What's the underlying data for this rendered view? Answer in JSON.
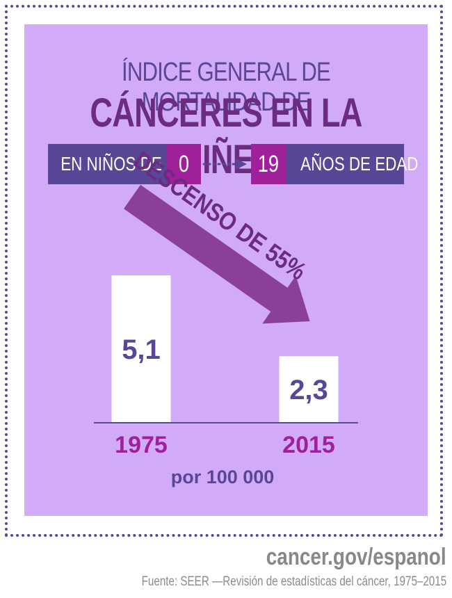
{
  "title_line1": "ÍNDICE GENERAL DE MORTALIDAD DE",
  "title_line2": "CÁNCERES EN LA NIÑEZ",
  "age_band": {
    "prefix": "EN NIÑOS DE",
    "from": "0",
    "to": "19",
    "suffix": "AÑOS DE EDAD"
  },
  "decline_label": "DESCENSO DE 55%",
  "unit_label": "por 100 000",
  "colors": {
    "purple_dark": "#5a4696",
    "magenta": "#a0209b",
    "plum": "#6b2c80",
    "background": "#d1aaf8",
    "year_text": "#a0209b"
  },
  "chart_data": {
    "type": "bar",
    "categories": [
      "1975",
      "2015"
    ],
    "values": [
      5.1,
      2.3
    ],
    "value_labels": [
      "5,1",
      "2,3"
    ],
    "ylim": [
      0,
      5.1
    ]
  },
  "footer": {
    "site": "cancer.gov/espanol",
    "source": "Fuente: SEER —Revisión de estadísticas del cáncer, 1975–2015"
  }
}
